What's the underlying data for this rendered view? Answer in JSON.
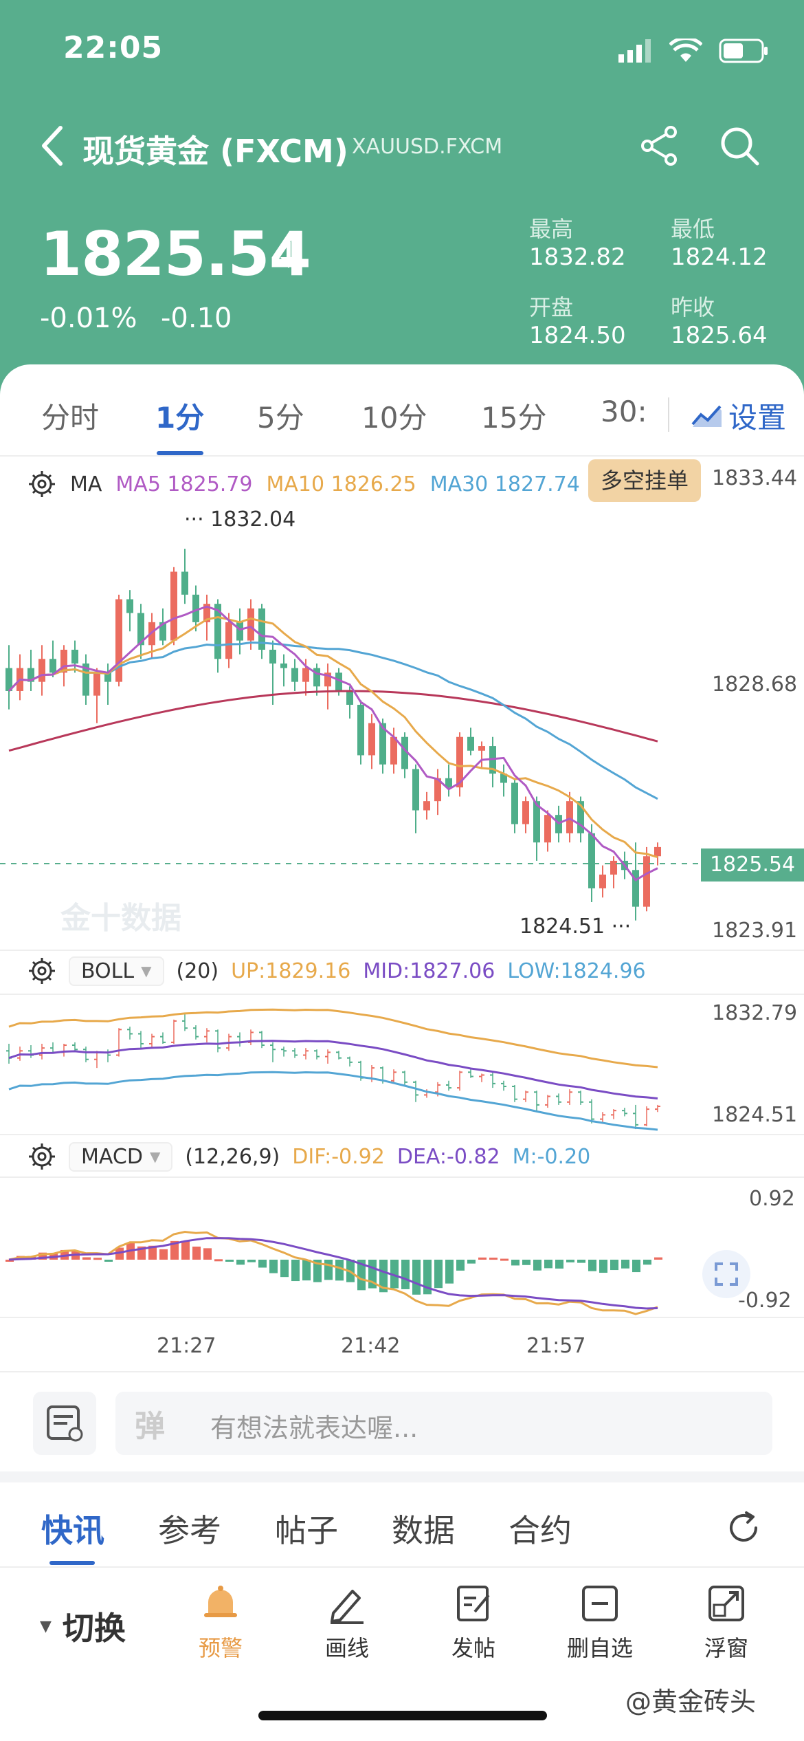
{
  "status_bar": {
    "time": "22:05"
  },
  "header": {
    "title": "现货黄金 (FXCM)",
    "symbol": "XAUUSD.FXCM",
    "price": "1825.54",
    "change_pct": "-0.01%",
    "change_abs": "-0.10",
    "stats": [
      {
        "label": "最高",
        "value": "1832.82"
      },
      {
        "label": "最低",
        "value": "1824.12"
      },
      {
        "label": "开盘",
        "value": "1824.50"
      },
      {
        "label": "昨收",
        "value": "1825.64"
      }
    ]
  },
  "interval_tabs": [
    "分时",
    "1分",
    "5分",
    "10分",
    "15分",
    "30:"
  ],
  "active_interval": "1分",
  "settings_label": "设置",
  "ma_legend": {
    "name": "MA",
    "items": [
      {
        "label": "MA5 1825.79",
        "color": "#b05ac4"
      },
      {
        "label": "MA10 1826.25",
        "color": "#e7a94b"
      },
      {
        "label": "MA30 1827.74",
        "color": "#53a5d4"
      },
      {
        "label": "MA",
        "color": "#b8385a"
      }
    ]
  },
  "order_badge": "多空挂单",
  "main_axis": {
    "top": "1833.44",
    "mid": "1828.68",
    "bottom": "1823.91"
  },
  "current_price_tag": "1825.54",
  "high_marker": "1832.04",
  "low_marker": "1824.51",
  "watermark": "金十数据",
  "boll": {
    "name": "BOLL",
    "param": "(20)",
    "up": "UP:1829.16",
    "mid": "MID:1827.06",
    "low": "LOW:1824.96",
    "axis_top": "1832.79",
    "axis_bottom": "1824.51"
  },
  "macd": {
    "name": "MACD",
    "param": "(12,26,9)",
    "dif": "DIF:-0.92",
    "dea": "DEA:-0.82",
    "m": "M:-0.20",
    "axis_top": "0.92",
    "axis_bottom": "-0.92"
  },
  "x_ticks": [
    "21:27",
    "21:42",
    "21:57"
  ],
  "chart_data": {
    "type": "candlestick",
    "y_range": [
      1823.91,
      1833.44
    ],
    "candles": [
      {
        "o": 1829.4,
        "h": 1829.9,
        "l": 1828.5,
        "c": 1828.9
      },
      {
        "o": 1828.9,
        "h": 1829.7,
        "l": 1828.7,
        "c": 1829.4
      },
      {
        "o": 1829.4,
        "h": 1829.8,
        "l": 1828.9,
        "c": 1829.1
      },
      {
        "o": 1829.1,
        "h": 1829.9,
        "l": 1828.8,
        "c": 1829.6
      },
      {
        "o": 1829.6,
        "h": 1830.0,
        "l": 1829.2,
        "c": 1829.3
      },
      {
        "o": 1829.3,
        "h": 1829.9,
        "l": 1829.0,
        "c": 1829.8
      },
      {
        "o": 1829.8,
        "h": 1830.0,
        "l": 1829.3,
        "c": 1829.5
      },
      {
        "o": 1829.5,
        "h": 1829.7,
        "l": 1828.6,
        "c": 1828.8
      },
      {
        "o": 1828.8,
        "h": 1829.4,
        "l": 1828.2,
        "c": 1829.3
      },
      {
        "o": 1829.3,
        "h": 1829.5,
        "l": 1828.6,
        "c": 1829.1
      },
      {
        "o": 1829.1,
        "h": 1831.0,
        "l": 1829.0,
        "c": 1830.9
      },
      {
        "o": 1830.9,
        "h": 1831.1,
        "l": 1830.2,
        "c": 1830.6
      },
      {
        "o": 1830.6,
        "h": 1830.8,
        "l": 1829.6,
        "c": 1829.9
      },
      {
        "o": 1829.9,
        "h": 1830.6,
        "l": 1829.6,
        "c": 1830.4
      },
      {
        "o": 1830.4,
        "h": 1830.7,
        "l": 1829.9,
        "c": 1830.0
      },
      {
        "o": 1830.0,
        "h": 1831.6,
        "l": 1829.9,
        "c": 1831.5
      },
      {
        "o": 1831.5,
        "h": 1832.0,
        "l": 1830.8,
        "c": 1831.0
      },
      {
        "o": 1831.0,
        "h": 1831.2,
        "l": 1830.2,
        "c": 1830.4
      },
      {
        "o": 1830.4,
        "h": 1831.0,
        "l": 1830.0,
        "c": 1830.8
      },
      {
        "o": 1830.8,
        "h": 1830.9,
        "l": 1829.3,
        "c": 1829.6
      },
      {
        "o": 1829.6,
        "h": 1830.6,
        "l": 1829.4,
        "c": 1830.4
      },
      {
        "o": 1830.4,
        "h": 1830.7,
        "l": 1829.7,
        "c": 1830.0
      },
      {
        "o": 1830.0,
        "h": 1830.9,
        "l": 1829.8,
        "c": 1830.7
      },
      {
        "o": 1830.7,
        "h": 1830.8,
        "l": 1829.6,
        "c": 1829.8
      },
      {
        "o": 1829.8,
        "h": 1830.0,
        "l": 1828.6,
        "c": 1829.5
      },
      {
        "o": 1829.5,
        "h": 1829.7,
        "l": 1829.0,
        "c": 1829.4
      },
      {
        "o": 1829.4,
        "h": 1829.6,
        "l": 1828.9,
        "c": 1829.1
      },
      {
        "o": 1829.1,
        "h": 1829.6,
        "l": 1828.8,
        "c": 1829.4
      },
      {
        "o": 1829.4,
        "h": 1829.5,
        "l": 1828.8,
        "c": 1829.0
      },
      {
        "o": 1829.0,
        "h": 1829.5,
        "l": 1828.5,
        "c": 1829.3
      },
      {
        "o": 1829.3,
        "h": 1829.4,
        "l": 1828.8,
        "c": 1828.9
      },
      {
        "o": 1828.9,
        "h": 1829.0,
        "l": 1828.3,
        "c": 1828.6
      },
      {
        "o": 1828.6,
        "h": 1828.7,
        "l": 1827.3,
        "c": 1827.5
      },
      {
        "o": 1827.5,
        "h": 1828.4,
        "l": 1827.2,
        "c": 1828.2
      },
      {
        "o": 1828.2,
        "h": 1828.3,
        "l": 1827.1,
        "c": 1827.3
      },
      {
        "o": 1827.3,
        "h": 1828.1,
        "l": 1827.1,
        "c": 1827.9
      },
      {
        "o": 1827.9,
        "h": 1828.0,
        "l": 1827.0,
        "c": 1827.2
      },
      {
        "o": 1827.2,
        "h": 1827.3,
        "l": 1825.8,
        "c": 1826.3
      },
      {
        "o": 1826.3,
        "h": 1826.7,
        "l": 1826.1,
        "c": 1826.5
      },
      {
        "o": 1826.5,
        "h": 1827.2,
        "l": 1826.2,
        "c": 1827.0
      },
      {
        "o": 1827.0,
        "h": 1827.3,
        "l": 1826.6,
        "c": 1826.8
      },
      {
        "o": 1826.8,
        "h": 1828.0,
        "l": 1826.6,
        "c": 1827.9
      },
      {
        "o": 1827.9,
        "h": 1828.1,
        "l": 1827.5,
        "c": 1827.6
      },
      {
        "o": 1827.6,
        "h": 1827.8,
        "l": 1827.2,
        "c": 1827.7
      },
      {
        "o": 1827.7,
        "h": 1827.9,
        "l": 1826.8,
        "c": 1827.1
      },
      {
        "o": 1827.1,
        "h": 1827.3,
        "l": 1826.6,
        "c": 1826.9
      },
      {
        "o": 1826.9,
        "h": 1827.0,
        "l": 1825.8,
        "c": 1826.0
      },
      {
        "o": 1826.0,
        "h": 1826.6,
        "l": 1825.8,
        "c": 1826.5
      },
      {
        "o": 1826.5,
        "h": 1826.6,
        "l": 1825.2,
        "c": 1825.6
      },
      {
        "o": 1825.6,
        "h": 1826.3,
        "l": 1825.4,
        "c": 1826.2
      },
      {
        "o": 1826.2,
        "h": 1826.4,
        "l": 1825.6,
        "c": 1825.8
      },
      {
        "o": 1825.8,
        "h": 1826.7,
        "l": 1825.6,
        "c": 1826.5
      },
      {
        "o": 1826.5,
        "h": 1826.6,
        "l": 1825.6,
        "c": 1825.8
      },
      {
        "o": 1825.8,
        "h": 1826.0,
        "l": 1824.3,
        "c": 1824.6
      },
      {
        "o": 1824.6,
        "h": 1825.1,
        "l": 1824.4,
        "c": 1824.9
      },
      {
        "o": 1824.9,
        "h": 1825.3,
        "l": 1824.6,
        "c": 1825.2
      },
      {
        "o": 1825.2,
        "h": 1825.4,
        "l": 1824.8,
        "c": 1825.0
      },
      {
        "o": 1825.0,
        "h": 1825.6,
        "l": 1823.9,
        "c": 1824.2
      },
      {
        "o": 1824.2,
        "h": 1825.5,
        "l": 1824.1,
        "c": 1825.3
      },
      {
        "o": 1825.3,
        "h": 1825.6,
        "l": 1825.1,
        "c": 1825.5
      }
    ],
    "up_color": "#eb6c5f",
    "down_color": "#4fae8a"
  },
  "comment": {
    "placeholder": "有想法就表达喔...",
    "logo": "弹"
  },
  "news_tabs": [
    "快讯",
    "参考",
    "帖子",
    "数据",
    "合约"
  ],
  "active_news_tab": "快讯",
  "bottom_bar": {
    "switch": "切换",
    "tools": [
      {
        "label": "预警",
        "icon": "bell-icon"
      },
      {
        "label": "画线",
        "icon": "pen-icon"
      },
      {
        "label": "发帖",
        "icon": "post-icon"
      },
      {
        "label": "删自选",
        "icon": "remove-watchlist-icon"
      },
      {
        "label": "浮窗",
        "icon": "float-window-icon"
      }
    ]
  },
  "footer_watermark": "@黄金砖头"
}
